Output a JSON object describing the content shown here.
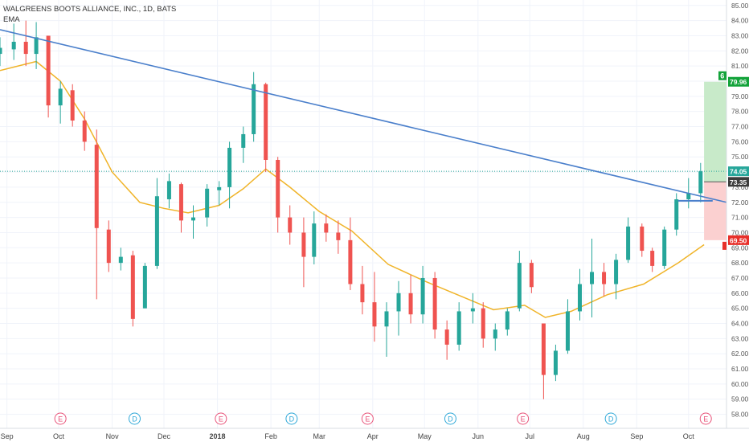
{
  "header": {
    "symbol_line": "WALGREENS BOOTS ALLIANCE, INC., 1D, BATS",
    "indicator": "EMA"
  },
  "colors": {
    "up": "#26a69a",
    "down": "#ef5350",
    "trendline": "#4a7fcb",
    "ema": "#f0b429",
    "profit_zone": "#c8eac9",
    "loss_zone": "#fbd0d0",
    "last_price_line": "#26a69a"
  },
  "chart_data": {
    "type": "candlestick",
    "title": "WALGREENS BOOTS ALLIANCE, INC., 1D, BATS",
    "ylim": [
      57.5,
      85.2
    ],
    "y_ticks": [
      58,
      59,
      60,
      61,
      62,
      63,
      64,
      65,
      66,
      67,
      68,
      69,
      70,
      71,
      72,
      73,
      74,
      75,
      76,
      77,
      78,
      79,
      80,
      81,
      82,
      83,
      84,
      85
    ],
    "x_months": [
      "Sep",
      "Oct",
      "Nov",
      "Dec",
      "2018",
      "Feb",
      "Mar",
      "Apr",
      "May",
      "Jun",
      "Jul",
      "Aug",
      "Sep",
      "Oct"
    ],
    "x_range": [
      "2017-08-28",
      "2018-10-23"
    ],
    "candles": [
      {
        "date": "2017-08-28",
        "open": 81.8,
        "high": 82.9,
        "low": 81.0,
        "close": 82.2
      },
      {
        "date": "2017-09-05",
        "open": 82.1,
        "high": 83.8,
        "low": 81.4,
        "close": 82.6
      },
      {
        "date": "2017-09-12",
        "open": 82.6,
        "high": 84.0,
        "low": 81.0,
        "close": 81.8
      },
      {
        "date": "2017-09-18",
        "open": 81.8,
        "high": 83.9,
        "low": 80.8,
        "close": 82.9
      },
      {
        "date": "2017-09-25",
        "open": 83.0,
        "high": 83.0,
        "low": 77.6,
        "close": 78.4
      },
      {
        "date": "2017-10-02",
        "open": 78.4,
        "high": 80.0,
        "low": 77.2,
        "close": 79.5
      },
      {
        "date": "2017-10-09",
        "open": 79.4,
        "high": 79.8,
        "low": 77.0,
        "close": 77.4
      },
      {
        "date": "2017-10-16",
        "open": 77.4,
        "high": 78.0,
        "low": 75.4,
        "close": 76.0
      },
      {
        "date": "2017-10-23",
        "open": 75.8,
        "high": 76.8,
        "low": 65.6,
        "close": 70.3
      },
      {
        "date": "2017-10-30",
        "open": 70.2,
        "high": 70.8,
        "low": 67.4,
        "close": 68.0
      },
      {
        "date": "2017-11-06",
        "open": 68.0,
        "high": 69.0,
        "low": 67.5,
        "close": 68.4
      },
      {
        "date": "2017-11-13",
        "open": 68.5,
        "high": 68.8,
        "low": 63.8,
        "close": 64.3
      },
      {
        "date": "2017-11-20",
        "open": 65.0,
        "high": 68.0,
        "low": 65.0,
        "close": 67.8
      },
      {
        "date": "2017-11-27",
        "open": 67.8,
        "high": 73.6,
        "low": 67.6,
        "close": 72.4
      },
      {
        "date": "2017-12-04",
        "open": 72.2,
        "high": 73.9,
        "low": 71.6,
        "close": 73.4
      },
      {
        "date": "2017-12-11",
        "open": 73.2,
        "high": 73.3,
        "low": 70.0,
        "close": 70.8
      },
      {
        "date": "2017-12-18",
        "open": 70.8,
        "high": 71.8,
        "low": 69.6,
        "close": 71.0
      },
      {
        "date": "2017-12-26",
        "open": 71.0,
        "high": 73.2,
        "low": 70.4,
        "close": 72.9
      },
      {
        "date": "2018-01-02",
        "open": 72.8,
        "high": 73.4,
        "low": 71.8,
        "close": 73.0
      },
      {
        "date": "2018-01-08",
        "open": 73.0,
        "high": 76.0,
        "low": 71.6,
        "close": 75.6
      },
      {
        "date": "2018-01-16",
        "open": 75.6,
        "high": 77.0,
        "low": 74.6,
        "close": 76.5
      },
      {
        "date": "2018-01-22",
        "open": 76.5,
        "high": 80.6,
        "low": 76.0,
        "close": 79.8
      },
      {
        "date": "2018-01-29",
        "open": 79.8,
        "high": 79.9,
        "low": 74.0,
        "close": 74.8
      },
      {
        "date": "2018-02-05",
        "open": 74.8,
        "high": 75.0,
        "low": 70.0,
        "close": 71.0
      },
      {
        "date": "2018-02-12",
        "open": 71.0,
        "high": 71.8,
        "low": 69.2,
        "close": 70.0
      },
      {
        "date": "2018-02-20",
        "open": 70.0,
        "high": 71.0,
        "low": 66.4,
        "close": 68.4
      },
      {
        "date": "2018-02-26",
        "open": 68.4,
        "high": 71.4,
        "low": 67.9,
        "close": 70.6
      },
      {
        "date": "2018-03-05",
        "open": 70.6,
        "high": 71.2,
        "low": 69.4,
        "close": 70.0
      },
      {
        "date": "2018-03-12",
        "open": 70.0,
        "high": 70.8,
        "low": 68.6,
        "close": 69.5
      },
      {
        "date": "2018-03-19",
        "open": 69.5,
        "high": 71.0,
        "low": 66.2,
        "close": 66.6
      },
      {
        "date": "2018-03-26",
        "open": 66.6,
        "high": 67.8,
        "low": 64.6,
        "close": 65.4
      },
      {
        "date": "2018-04-02",
        "open": 65.4,
        "high": 67.4,
        "low": 62.8,
        "close": 63.8
      },
      {
        "date": "2018-04-09",
        "open": 63.8,
        "high": 65.4,
        "low": 61.8,
        "close": 64.8
      },
      {
        "date": "2018-04-16",
        "open": 64.8,
        "high": 66.8,
        "low": 63.2,
        "close": 66.0
      },
      {
        "date": "2018-04-23",
        "open": 66.0,
        "high": 67.2,
        "low": 64.0,
        "close": 64.6
      },
      {
        "date": "2018-04-30",
        "open": 64.6,
        "high": 67.8,
        "low": 64.0,
        "close": 67.0
      },
      {
        "date": "2018-05-07",
        "open": 67.0,
        "high": 67.4,
        "low": 63.0,
        "close": 63.6
      },
      {
        "date": "2018-05-14",
        "open": 63.6,
        "high": 64.2,
        "low": 61.6,
        "close": 62.6
      },
      {
        "date": "2018-05-21",
        "open": 62.6,
        "high": 65.4,
        "low": 62.2,
        "close": 64.8
      },
      {
        "date": "2018-05-29",
        "open": 64.8,
        "high": 66.0,
        "low": 64.0,
        "close": 65.0
      },
      {
        "date": "2018-06-04",
        "open": 65.0,
        "high": 65.4,
        "low": 62.4,
        "close": 63.0
      },
      {
        "date": "2018-06-11",
        "open": 63.0,
        "high": 64.0,
        "low": 62.2,
        "close": 63.6
      },
      {
        "date": "2018-06-18",
        "open": 63.6,
        "high": 65.0,
        "low": 63.2,
        "close": 64.8
      },
      {
        "date": "2018-06-25",
        "open": 65.0,
        "high": 68.8,
        "low": 64.8,
        "close": 68.0
      },
      {
        "date": "2018-07-02",
        "open": 68.0,
        "high": 68.2,
        "low": 66.0,
        "close": 66.4
      },
      {
        "date": "2018-07-09",
        "open": 64.0,
        "high": 64.0,
        "low": 59.0,
        "close": 60.6
      },
      {
        "date": "2018-07-16",
        "open": 60.6,
        "high": 62.6,
        "low": 60.2,
        "close": 62.2
      },
      {
        "date": "2018-07-23",
        "open": 62.2,
        "high": 65.6,
        "low": 62.0,
        "close": 64.8
      },
      {
        "date": "2018-07-30",
        "open": 64.8,
        "high": 67.6,
        "low": 64.2,
        "close": 66.6
      },
      {
        "date": "2018-08-06",
        "open": 66.6,
        "high": 69.6,
        "low": 64.4,
        "close": 67.4
      },
      {
        "date": "2018-08-13",
        "open": 67.4,
        "high": 68.0,
        "low": 65.8,
        "close": 66.6
      },
      {
        "date": "2018-08-20",
        "open": 66.6,
        "high": 68.6,
        "low": 65.6,
        "close": 68.2
      },
      {
        "date": "2018-08-27",
        "open": 68.2,
        "high": 71.0,
        "low": 68.0,
        "close": 70.4
      },
      {
        "date": "2018-09-04",
        "open": 70.4,
        "high": 70.6,
        "low": 68.4,
        "close": 68.8
      },
      {
        "date": "2018-09-10",
        "open": 68.8,
        "high": 69.0,
        "low": 67.4,
        "close": 67.8
      },
      {
        "date": "2018-09-17",
        "open": 67.8,
        "high": 70.4,
        "low": 67.6,
        "close": 70.2
      },
      {
        "date": "2018-09-24",
        "open": 70.2,
        "high": 72.6,
        "low": 69.8,
        "close": 72.2
      },
      {
        "date": "2018-10-01",
        "open": 72.2,
        "high": 73.6,
        "low": 71.6,
        "close": 72.6
      },
      {
        "date": "2018-10-08",
        "open": 72.6,
        "high": 74.6,
        "low": 72.0,
        "close": 74.05
      }
    ],
    "ema": [
      [
        "2017-08-28",
        80.7
      ],
      [
        "2017-09-18",
        81.3
      ],
      [
        "2017-10-02",
        80.0
      ],
      [
        "2017-10-16",
        77.5
      ],
      [
        "2017-11-01",
        74.0
      ],
      [
        "2017-11-17",
        72.0
      ],
      [
        "2017-12-01",
        71.6
      ],
      [
        "2017-12-15",
        71.3
      ],
      [
        "2018-01-02",
        71.8
      ],
      [
        "2018-01-16",
        72.9
      ],
      [
        "2018-01-29",
        74.2
      ],
      [
        "2018-02-12",
        73.0
      ],
      [
        "2018-03-01",
        71.4
      ],
      [
        "2018-03-20",
        70.1
      ],
      [
        "2018-04-10",
        67.9
      ],
      [
        "2018-05-01",
        66.8
      ],
      [
        "2018-05-20",
        65.9
      ],
      [
        "2018-06-10",
        64.9
      ],
      [
        "2018-06-28",
        65.2
      ],
      [
        "2018-07-10",
        64.4
      ],
      [
        "2018-07-25",
        64.8
      ],
      [
        "2018-08-15",
        65.9
      ],
      [
        "2018-09-05",
        66.6
      ],
      [
        "2018-09-25",
        68.0
      ],
      [
        "2018-10-10",
        69.2
      ]
    ],
    "trendline": [
      [
        "2017-08-28",
        83.4
      ],
      [
        "2018-10-23",
        72.0
      ]
    ],
    "support_line": {
      "value": 72.1,
      "from": "2018-09-25",
      "to": "2018-10-15"
    },
    "long_position": {
      "entry": 73.35,
      "target": 79.96,
      "stop": 69.5,
      "from": "2018-10-10",
      "to": "2018-10-23"
    },
    "last_price": 74.05,
    "events": [
      {
        "date": "2017-10-02",
        "label": "E",
        "kind": "earnings"
      },
      {
        "date": "2017-11-14",
        "label": "D",
        "kind": "dividend"
      },
      {
        "date": "2018-01-03",
        "label": "E",
        "kind": "earnings"
      },
      {
        "date": "2018-02-13",
        "label": "D",
        "kind": "dividend"
      },
      {
        "date": "2018-03-29",
        "label": "E",
        "kind": "earnings"
      },
      {
        "date": "2018-05-16",
        "label": "D",
        "kind": "dividend"
      },
      {
        "date": "2018-06-27",
        "label": "E",
        "kind": "earnings"
      },
      {
        "date": "2018-08-17",
        "label": "D",
        "kind": "dividend"
      },
      {
        "date": "2018-10-11",
        "label": "E",
        "kind": "earnings"
      }
    ],
    "price_labels": [
      {
        "value": 79.96,
        "text": "79.96",
        "color": "#13a33a"
      },
      {
        "value": 74.05,
        "text": "74.05",
        "color": "#26a69a"
      },
      {
        "value": 73.35,
        "text": "73.35",
        "color": "#3c3c3c"
      },
      {
        "value": 69.5,
        "text": "69.50",
        "color": "#e8302a"
      }
    ],
    "target_badge": "6"
  }
}
